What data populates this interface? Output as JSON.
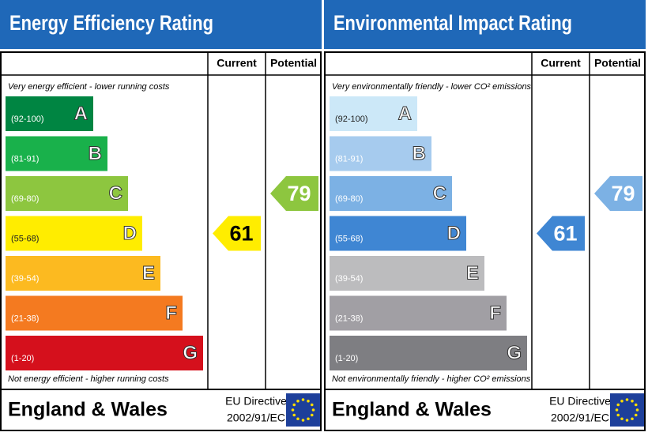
{
  "panels": [
    {
      "title": "Energy Efficiency Rating",
      "headers": {
        "current": "Current",
        "potential": "Potential"
      },
      "top_note": "Very energy efficient - lower running costs",
      "bands": [
        {
          "range": "(92-100)",
          "letter": "A",
          "color": "#008542"
        },
        {
          "range": "(81-91)",
          "letter": "B",
          "color": "#19b14b"
        },
        {
          "range": "(69-80)",
          "letter": "C",
          "color": "#8dc63f"
        },
        {
          "range": "(55-68)",
          "letter": "D",
          "color": "#ffed00"
        },
        {
          "range": "(39-54)",
          "letter": "E",
          "color": "#fcba20"
        },
        {
          "range": "(21-38)",
          "letter": "F",
          "color": "#f47a20"
        },
        {
          "range": "(1-20)",
          "letter": "G",
          "color": "#d5101c"
        }
      ],
      "bottom_note": "Not energy efficient - higher running costs",
      "current": 61,
      "potential": 79,
      "footer": {
        "region": "England & Wales",
        "directive": "EU Directive",
        "code": "2002/91/EC"
      }
    },
    {
      "title": "Environmental Impact Rating",
      "headers": {
        "current": "Current",
        "potential": "Potential"
      },
      "top_note": "Very environmentally friendly - lower CO² emissions",
      "bands": [
        {
          "range": "(92-100)",
          "letter": "A",
          "color": "#cce8f8"
        },
        {
          "range": "(81-91)",
          "letter": "B",
          "color": "#a6cbee"
        },
        {
          "range": "(69-80)",
          "letter": "C",
          "color": "#7cb1e4"
        },
        {
          "range": "(55-68)",
          "letter": "D",
          "color": "#3f86d3"
        },
        {
          "range": "(39-54)",
          "letter": "E",
          "color": "#bcbcbe"
        },
        {
          "range": "(21-38)",
          "letter": "F",
          "color": "#a19fa4"
        },
        {
          "range": "(1-20)",
          "letter": "G",
          "color": "#7e7e82"
        }
      ],
      "bottom_note": "Not environmentally friendly - higher CO² emissions",
      "current": 61,
      "potential": 79,
      "footer": {
        "region": "England & Wales",
        "directive": "EU Directive",
        "code": "2002/91/EC"
      }
    }
  ]
}
